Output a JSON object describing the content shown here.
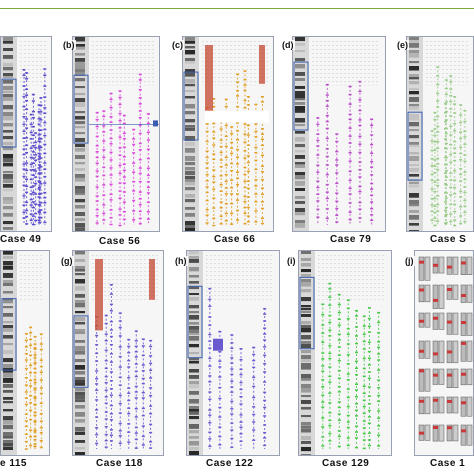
{
  "colors": {
    "rule": "#7aa63a",
    "frame": "#3a5fb0",
    "a": "#5a4ccc",
    "b": "#d84ad8",
    "c": "#e0a028",
    "d": "#b84ac8",
    "e": "#9acc8a",
    "f": "#e0a028",
    "g": "#6a5ad0",
    "h": "#6a5ad0",
    "i": "#4ac84a",
    "j": "#c83a3a",
    "highlight": "#c8503a"
  },
  "panels": {
    "a": {
      "label": "",
      "caption": "Case  49"
    },
    "b": {
      "label": "(b)",
      "caption": "Case  56"
    },
    "c": {
      "label": "(c)",
      "caption": "Case  66"
    },
    "d": {
      "label": "(d)",
      "caption": "Case  79"
    },
    "e": {
      "label": "(e)",
      "caption": "Case  S"
    },
    "f": {
      "label": "",
      "caption": "e  115"
    },
    "g": {
      "label": "(g)",
      "caption": "Case 118"
    },
    "h": {
      "label": "(h)",
      "caption": "Case  122"
    },
    "i": {
      "label": "(i)",
      "caption": "Case  129"
    },
    "j": {
      "label": "(j)",
      "caption": "Case  1"
    }
  }
}
